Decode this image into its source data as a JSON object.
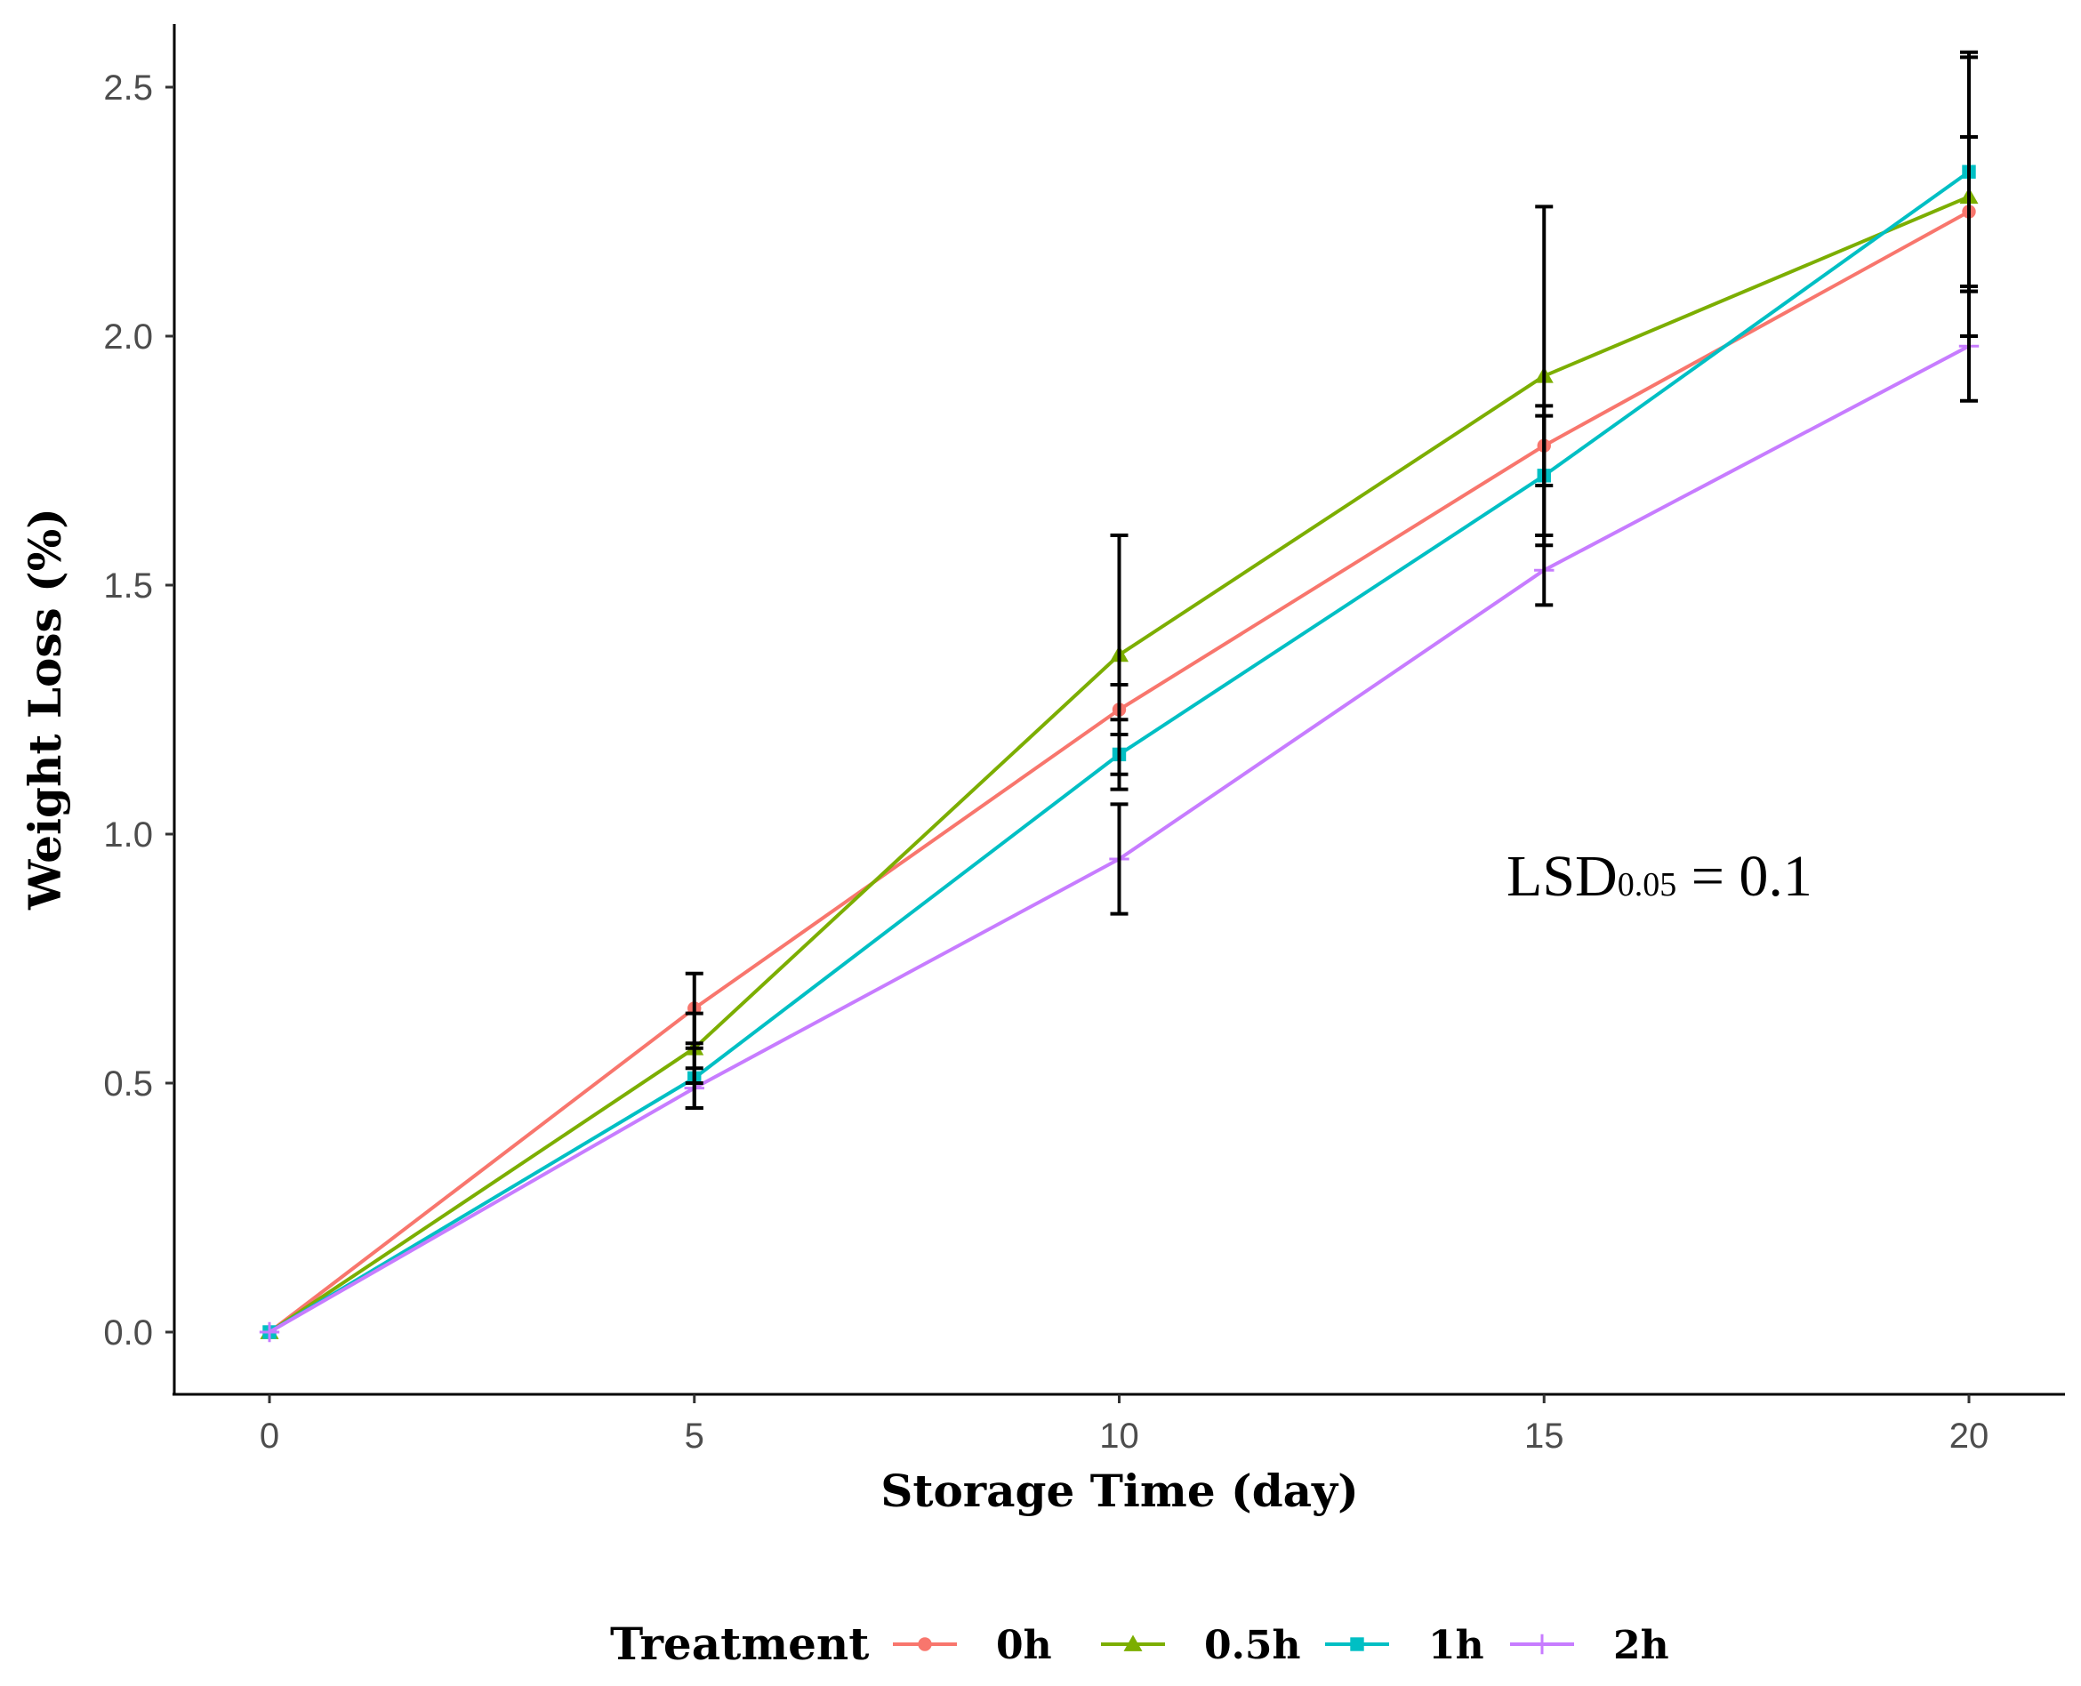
{
  "chart_data": {
    "type": "line",
    "title": "",
    "xlabel": "Storage Time (day)",
    "ylabel": "Weight Loss (%)",
    "xlim": [
      -1.1,
      21.1
    ],
    "ylim": [
      -0.125,
      2.625
    ],
    "x_ticks": [
      "0",
      "5",
      "10",
      "15",
      "20"
    ],
    "y_ticks": [
      "0.0",
      "0.5",
      "1.0",
      "1.5",
      "2.0",
      "2.5"
    ],
    "grid": false,
    "legend": {
      "title": "Treatment",
      "position": "bottom"
    },
    "annotation": {
      "main": "LSD",
      "sub": "0.05",
      "suffix": " = 0.1"
    },
    "x": [
      0,
      5,
      10,
      15,
      20
    ],
    "series": [
      {
        "name": "0h",
        "color": "#F8766D",
        "marker": "circle",
        "values": [
          0.0,
          0.65,
          1.25,
          1.78,
          2.25
        ],
        "errors": [
          0.0,
          0.07,
          0.05,
          0.08,
          0.15
        ]
      },
      {
        "name": "0.5h",
        "color": "#7CAE00",
        "marker": "triangle",
        "values": [
          0.0,
          0.57,
          1.36,
          1.92,
          2.28
        ],
        "errors": [
          0.0,
          0.07,
          0.24,
          0.34,
          0.28
        ]
      },
      {
        "name": "1h",
        "color": "#00BFC4",
        "marker": "square",
        "values": [
          0.0,
          0.51,
          1.16,
          1.72,
          2.33
        ],
        "errors": [
          0.0,
          0.06,
          0.07,
          0.12,
          0.24
        ]
      },
      {
        "name": "2h",
        "color": "#C77CFF",
        "marker": "plus",
        "values": [
          0.0,
          0.49,
          0.95,
          1.53,
          1.98
        ],
        "errors": [
          0.0,
          0.04,
          0.11,
          0.07,
          0.11
        ]
      }
    ]
  }
}
